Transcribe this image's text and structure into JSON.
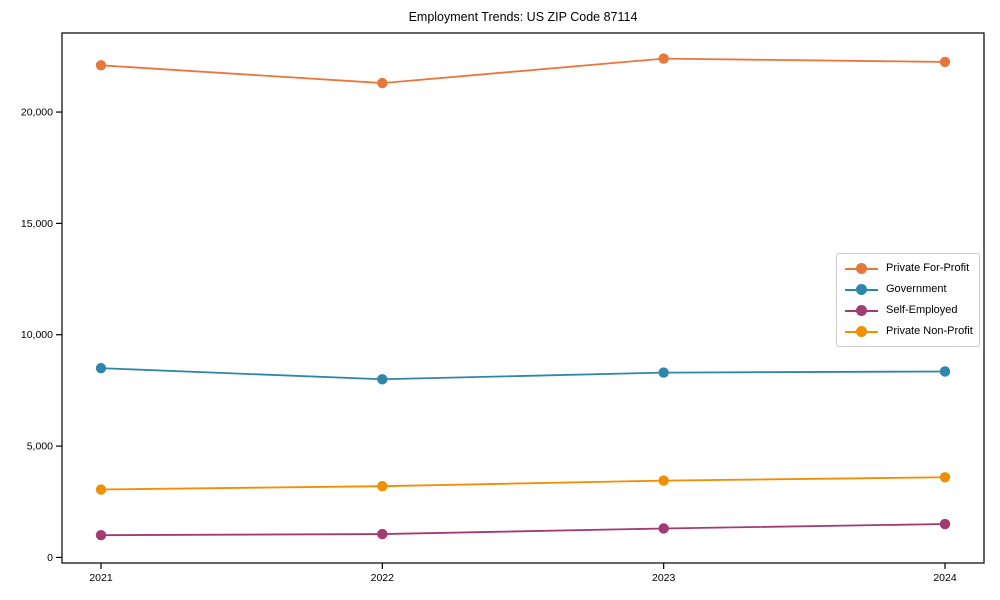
{
  "chart_data": {
    "type": "line",
    "title": "Employment Trends: US ZIP Code 87114",
    "x": [
      "2021",
      "2022",
      "2023",
      "2024"
    ],
    "series": [
      {
        "name": "Private For-Profit",
        "color": "#E8773B",
        "values": [
          22100,
          21300,
          22400,
          22250
        ]
      },
      {
        "name": "Government",
        "color": "#2E86AB",
        "values": [
          8500,
          8000,
          8300,
          8350
        ]
      },
      {
        "name": "Self-Employed",
        "color": "#A23B72",
        "values": [
          1000,
          1050,
          1300,
          1500
        ]
      },
      {
        "name": "Private Non-Profit",
        "color": "#F18F01",
        "values": [
          3050,
          3200,
          3450,
          3600
        ]
      }
    ],
    "yticks": [
      0,
      5000,
      10000,
      15000,
      20000
    ],
    "ytick_labels": [
      "0",
      "5,000",
      "10,000",
      "15,000",
      "20,000"
    ],
    "ylim": [
      -250,
      23550
    ],
    "xlabel": "",
    "ylabel": "",
    "grid": false,
    "legend_position": "center-right",
    "background_color": "#ffffff",
    "axis_color": "#000000"
  }
}
